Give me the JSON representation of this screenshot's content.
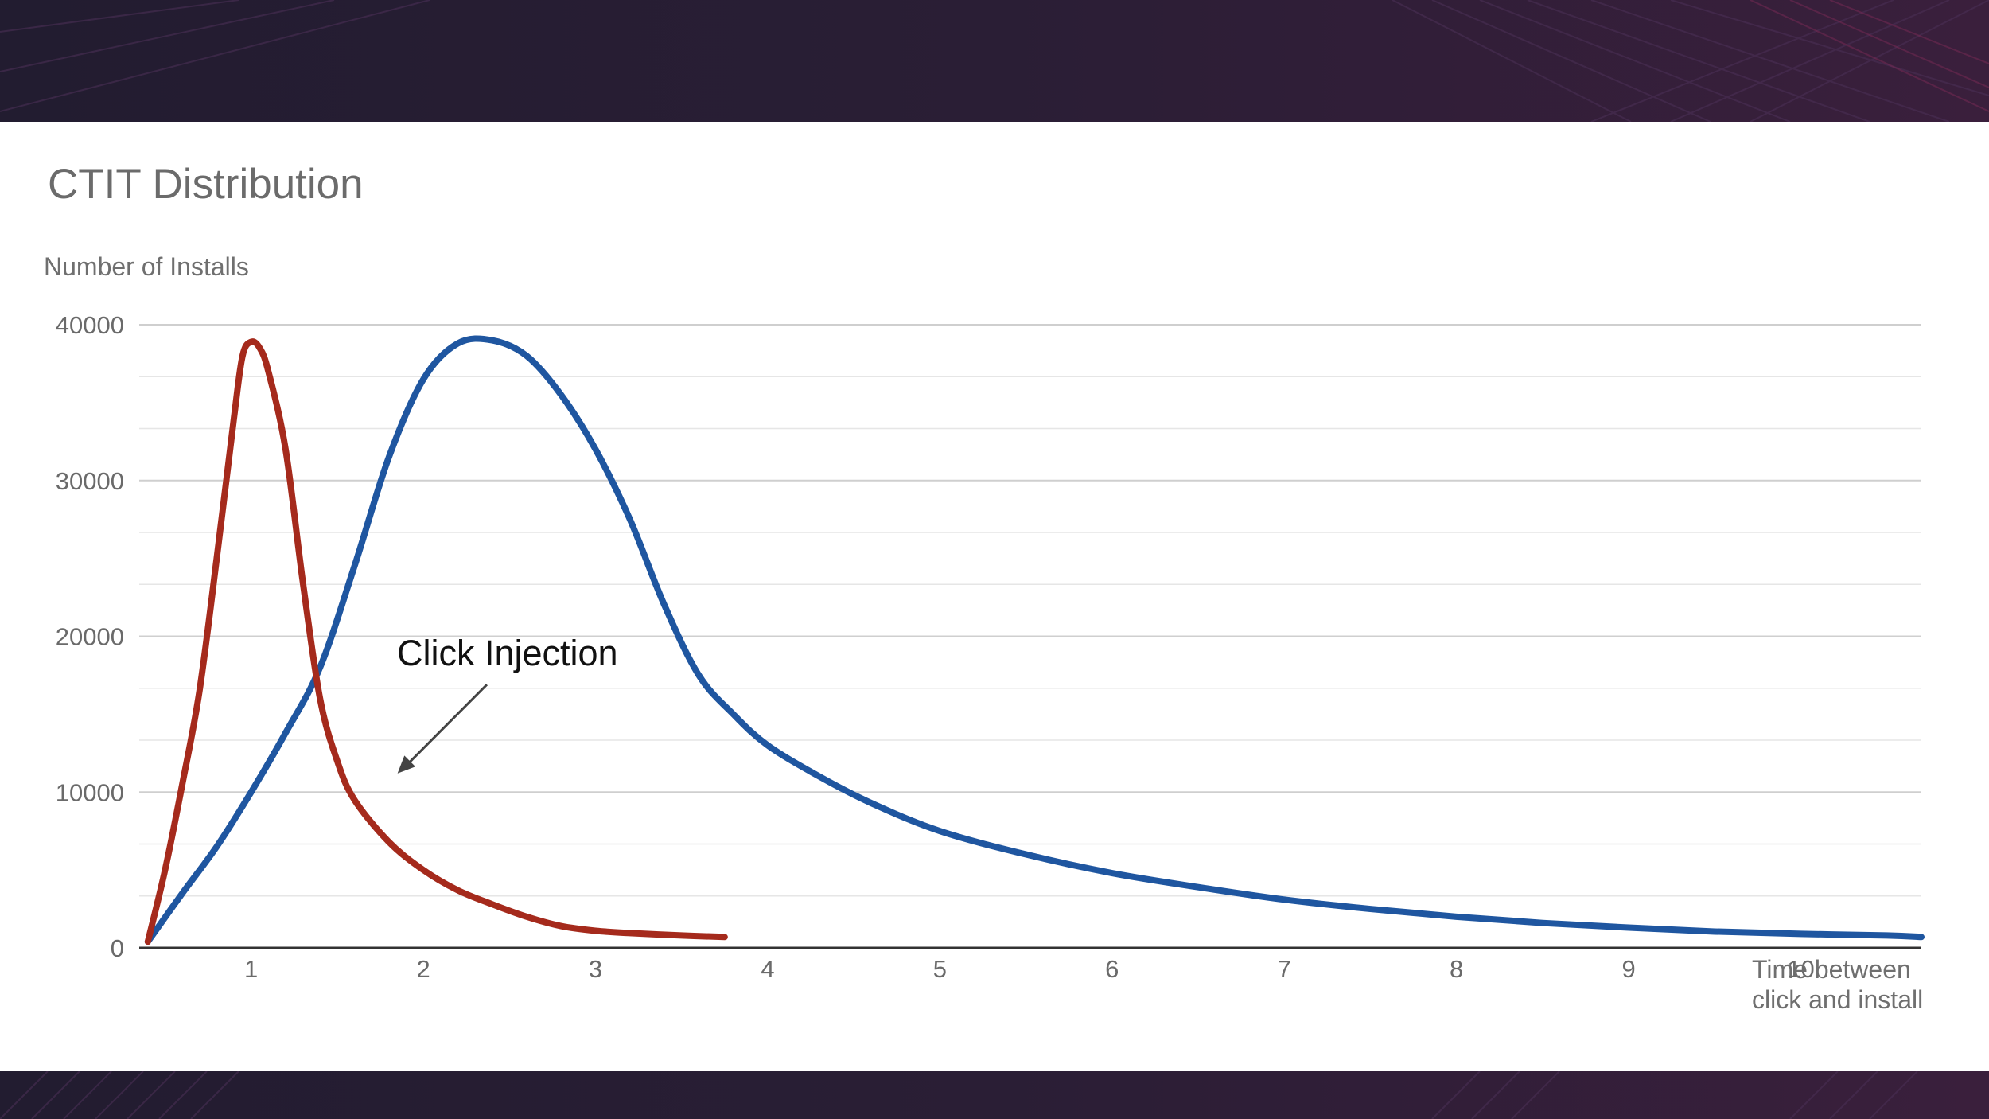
{
  "chart_data": {
    "type": "line",
    "title": "CTIT Distribution",
    "ylabel": "Number of Installs",
    "xlabel": "Time between click and install",
    "xlabel_lines": [
      "Time between",
      "click and install"
    ],
    "ylim": [
      0,
      40000
    ],
    "xlim": [
      0.35,
      10.7
    ],
    "yticks": [
      0,
      10000,
      20000,
      30000,
      40000
    ],
    "xticks": [
      1,
      2,
      3,
      4,
      5,
      6,
      7,
      8,
      9,
      10
    ],
    "grid": true,
    "series": [
      {
        "color": "#1f56a0",
        "x": [
          0.4,
          0.6,
          0.8,
          1.0,
          1.2,
          1.4,
          1.6,
          1.8,
          2.0,
          2.2,
          2.4,
          2.6,
          2.8,
          3.0,
          3.2,
          3.4,
          3.6,
          3.8,
          4.0,
          4.3,
          4.6,
          5.0,
          5.5,
          6.0,
          6.5,
          7.0,
          7.5,
          8.0,
          8.5,
          9.0,
          9.5,
          10.0,
          10.5,
          10.7
        ],
        "values": [
          400,
          3500,
          6500,
          10000,
          13800,
          18000,
          24500,
          31500,
          36500,
          38800,
          39000,
          38000,
          35500,
          32000,
          27500,
          22000,
          17500,
          15000,
          13000,
          11000,
          9300,
          7500,
          6000,
          4800,
          3900,
          3100,
          2500,
          2000,
          1600,
          1300,
          1050,
          900,
          800,
          700
        ]
      },
      {
        "color": "#a52a1c",
        "x": [
          0.4,
          0.5,
          0.6,
          0.7,
          0.8,
          0.9,
          0.95,
          1.0,
          1.05,
          1.1,
          1.2,
          1.3,
          1.4,
          1.5,
          1.6,
          1.8,
          2.0,
          2.2,
          2.4,
          2.6,
          2.8,
          3.0,
          3.2,
          3.5,
          3.75
        ],
        "values": [
          400,
          5000,
          10500,
          16500,
          25000,
          34000,
          38000,
          38900,
          38500,
          37000,
          32000,
          23500,
          16000,
          12000,
          9500,
          6800,
          5000,
          3700,
          2800,
          2000,
          1400,
          1100,
          950,
          800,
          700
        ]
      }
    ],
    "annotations": [
      {
        "text": "Click Injection",
        "x": 2.6,
        "y": 17000,
        "arrow_to_x": 1.85,
        "arrow_to_y": 11200
      }
    ]
  }
}
